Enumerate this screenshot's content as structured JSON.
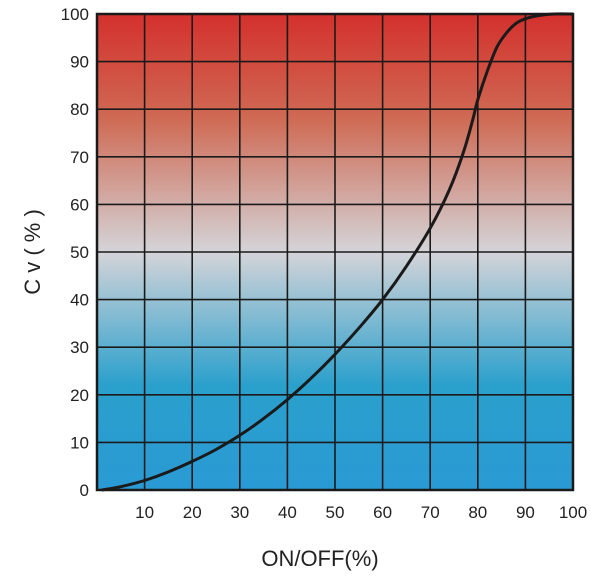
{
  "chart_data": {
    "type": "line",
    "title": "",
    "xlabel": "ON/OFF(%)",
    "ylabel": "C v ( % )",
    "xlim": [
      0,
      100
    ],
    "ylim": [
      0,
      100
    ],
    "x_ticks": [
      "10",
      "20",
      "30",
      "40",
      "50",
      "60",
      "70",
      "80",
      "90",
      "100"
    ],
    "y_ticks": [
      "0",
      "10",
      "20",
      "30",
      "40",
      "50",
      "60",
      "70",
      "80",
      "90",
      "100"
    ],
    "grid": true,
    "background_gradient": {
      "top": "#d4302c",
      "middle": "#d4d4d8",
      "bottom": "#2a9ad4"
    },
    "line_color": "#1a1a1a",
    "series": [
      {
        "x": [
          1,
          5,
          10,
          15,
          20,
          25,
          30,
          35,
          40,
          45,
          50,
          55,
          60,
          65,
          70,
          74,
          77,
          79,
          80,
          82,
          84,
          86,
          88,
          90,
          93,
          96,
          100
        ],
        "y": [
          0,
          0.7,
          2,
          3.8,
          6,
          8.5,
          11.5,
          15,
          19,
          23.5,
          28.5,
          34,
          40,
          47,
          55,
          63,
          71,
          78,
          82,
          88,
          93,
          96,
          98,
          99,
          99.7,
          100,
          100
        ]
      }
    ]
  }
}
